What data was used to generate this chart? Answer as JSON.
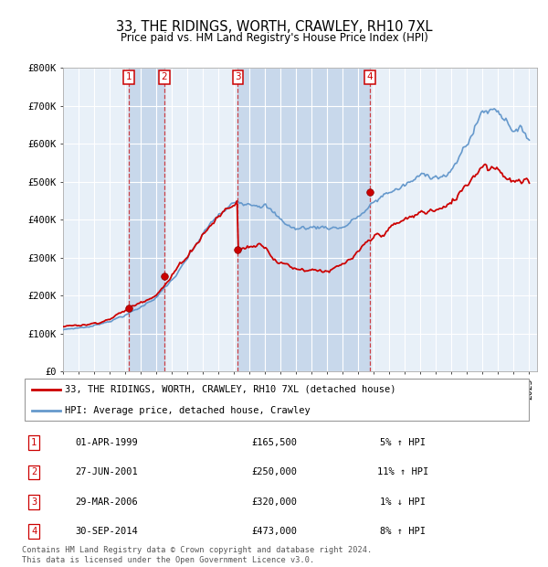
{
  "title": "33, THE RIDINGS, WORTH, CRAWLEY, RH10 7XL",
  "subtitle": "Price paid vs. HM Land Registry's House Price Index (HPI)",
  "ylim": [
    0,
    800000
  ],
  "yticks": [
    0,
    100000,
    200000,
    300000,
    400000,
    500000,
    600000,
    700000,
    800000
  ],
  "ytick_labels": [
    "£0",
    "£100K",
    "£200K",
    "£300K",
    "£400K",
    "£500K",
    "£600K",
    "£700K",
    "£800K"
  ],
  "xlim_start": 1995.0,
  "xlim_end": 2025.5,
  "xticks": [
    1995,
    1996,
    1997,
    1998,
    1999,
    2000,
    2001,
    2002,
    2003,
    2004,
    2005,
    2006,
    2007,
    2008,
    2009,
    2010,
    2011,
    2012,
    2013,
    2014,
    2015,
    2016,
    2017,
    2018,
    2019,
    2020,
    2021,
    2022,
    2023,
    2024,
    2025
  ],
  "sale_color": "#cc0000",
  "hpi_color": "#6699cc",
  "chart_bg": "#e8f0f8",
  "shade_color": "#d0dff0",
  "vline_color": "#cc0000",
  "transactions": [
    {
      "num": 1,
      "date_label": "01-APR-1999",
      "year": 1999.25,
      "price": 165500,
      "pct": "5%",
      "direction": "↑"
    },
    {
      "num": 2,
      "date_label": "27-JUN-2001",
      "year": 2001.5,
      "price": 250000,
      "pct": "11%",
      "direction": "↑"
    },
    {
      "num": 3,
      "date_label": "29-MAR-2006",
      "year": 2006.25,
      "price": 320000,
      "pct": "1%",
      "direction": "↓"
    },
    {
      "num": 4,
      "date_label": "30-SEP-2014",
      "year": 2014.75,
      "price": 473000,
      "pct": "8%",
      "direction": "↑"
    }
  ],
  "legend_line1": "33, THE RIDINGS, WORTH, CRAWLEY, RH10 7XL (detached house)",
  "legend_line2": "HPI: Average price, detached house, Crawley",
  "footer_line1": "Contains HM Land Registry data © Crown copyright and database right 2024.",
  "footer_line2": "This data is licensed under the Open Government Licence v3.0."
}
